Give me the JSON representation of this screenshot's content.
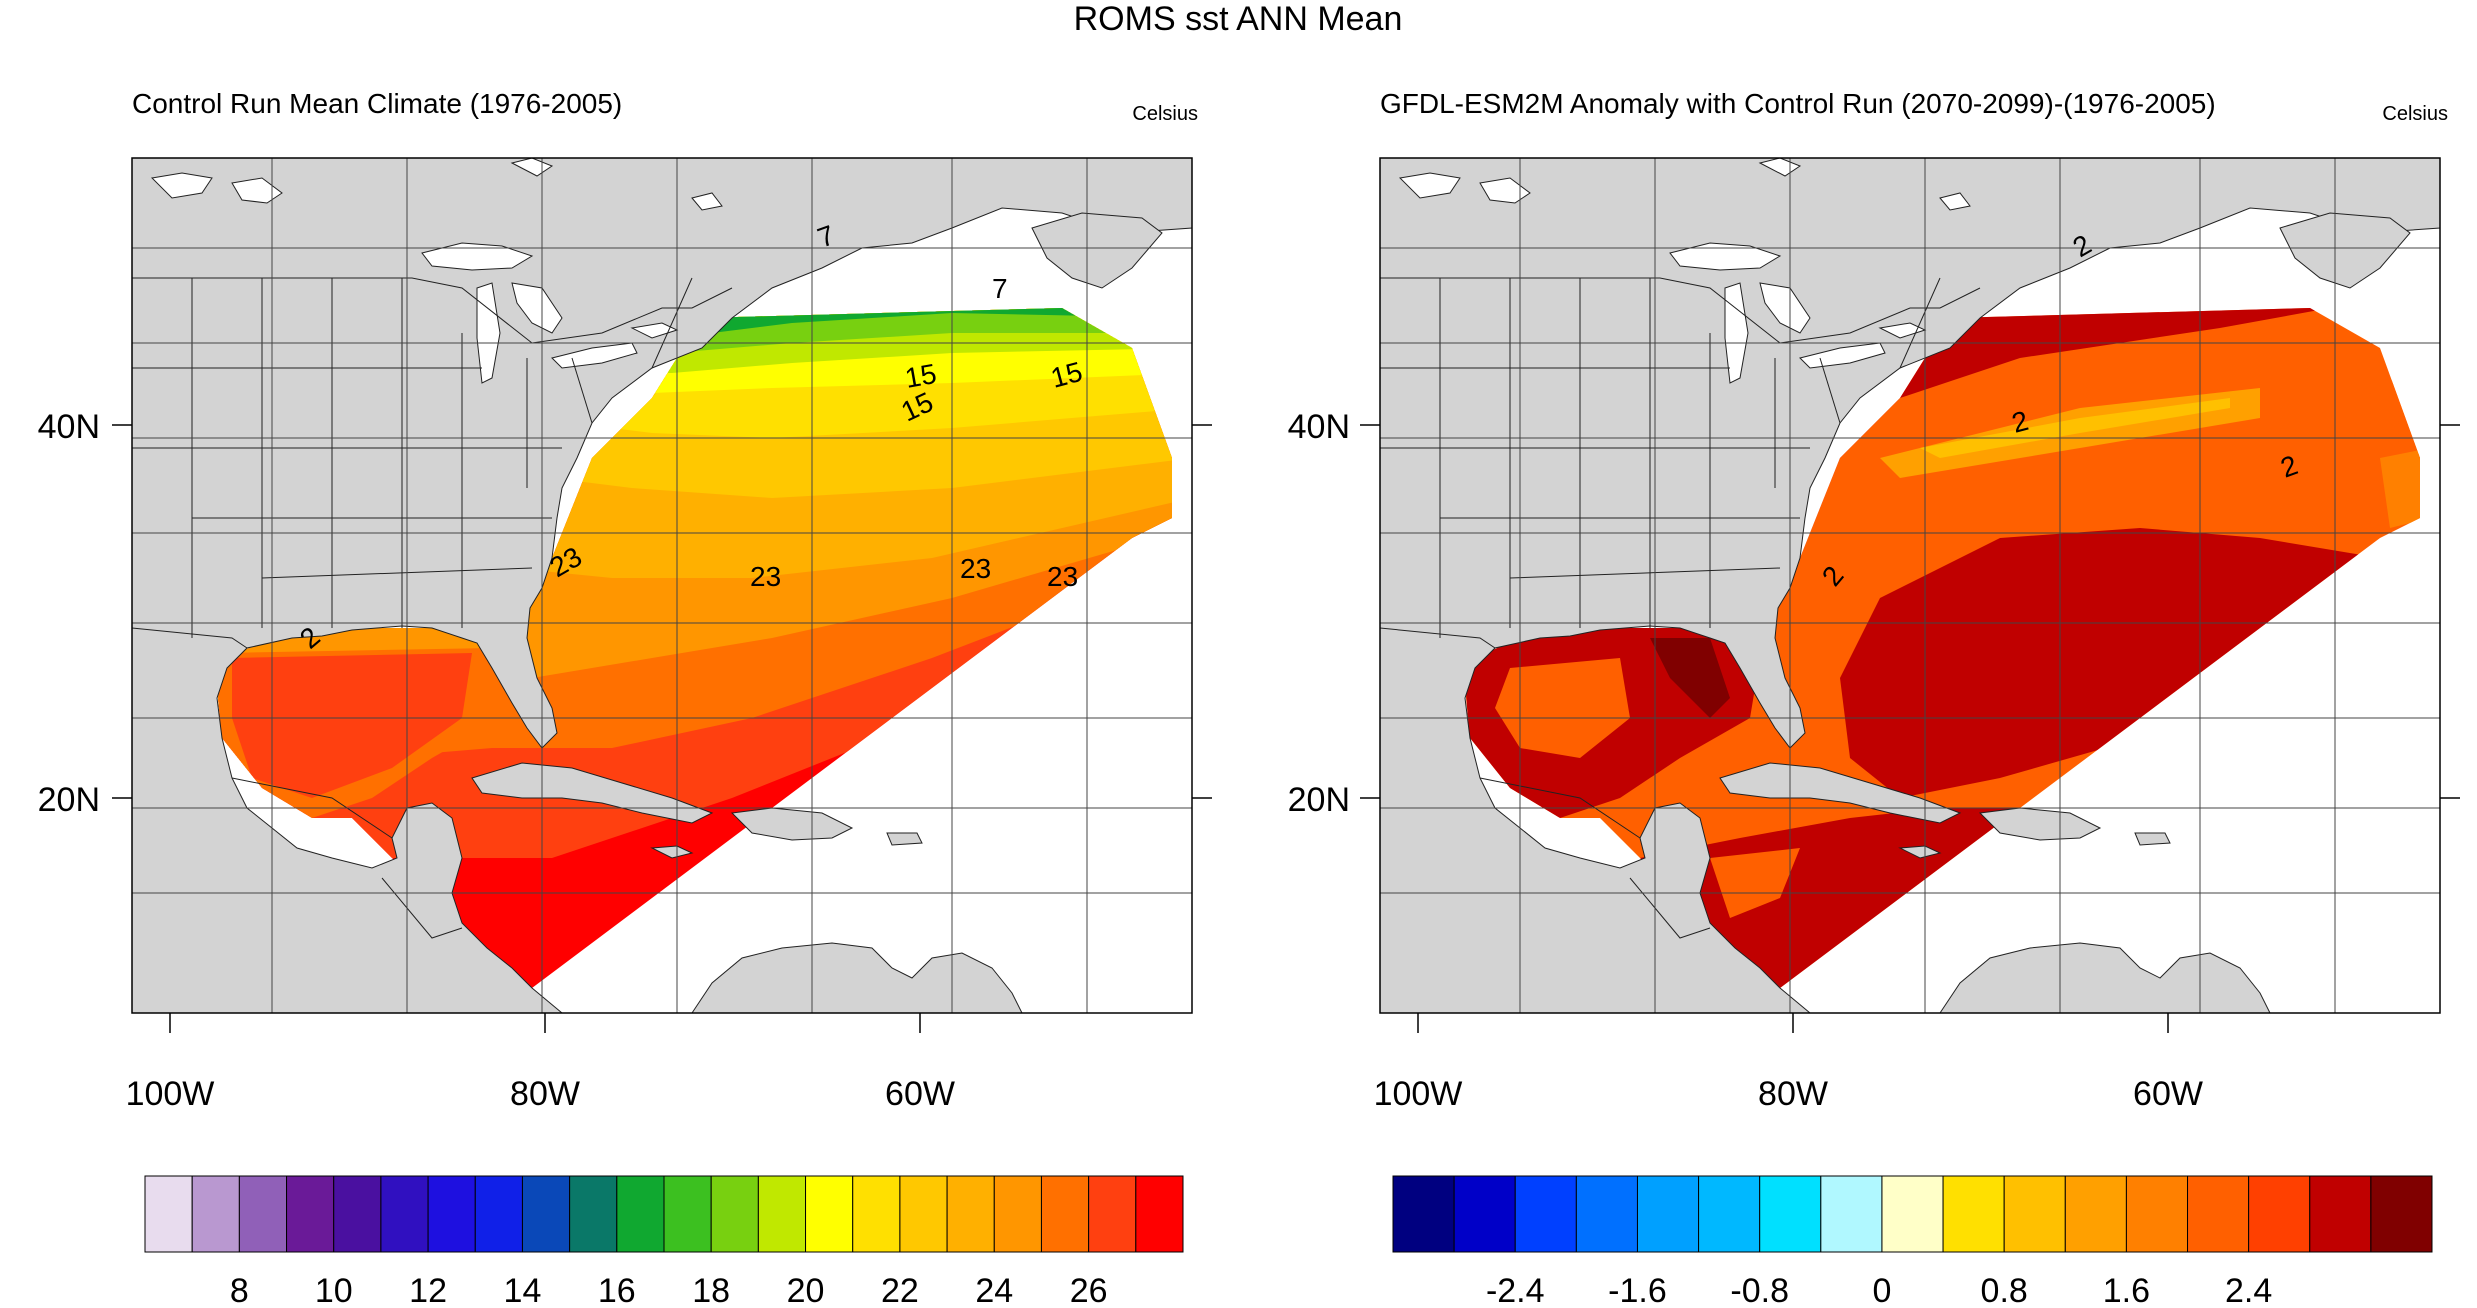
{
  "figure": {
    "title": "ROMS sst ANN Mean"
  },
  "panels": [
    {
      "title": "Control Run Mean Climate (1976-2005)",
      "units": "Celsius",
      "lat_labels": [
        "40N",
        "20N"
      ],
      "lon_labels": [
        "100W",
        "80W",
        "60W"
      ],
      "contour_labels": [
        "7",
        "7",
        "15",
        "15",
        "15",
        "23",
        "23",
        "23",
        "23",
        "2"
      ],
      "colorbar": {
        "colors": [
          "#e8dcee",
          "#b998d0",
          "#9060b8",
          "#6a1a98",
          "#4a10a0",
          "#3010c0",
          "#1e10e0",
          "#1020e8",
          "#0a48b8",
          "#0a7868",
          "#10a830",
          "#3cc020",
          "#78d010",
          "#c0e800",
          "#ffff00",
          "#ffe000",
          "#ffc800",
          "#ffb000",
          "#ff9600",
          "#ff7000",
          "#ff4010",
          "#ff0000"
        ],
        "labels": [
          "8",
          "10",
          "12",
          "14",
          "16",
          "18",
          "20",
          "22",
          "24",
          "26"
        ]
      },
      "palette": {
        "cold": "#e8dcee",
        "c10": "#6a1a98",
        "c12": "#3010c0",
        "c15": "#0a48b8",
        "c16": "#10a830",
        "c18": "#78d010",
        "c20": "#ffff00",
        "c22": "#ffe000",
        "c23": "#ffc800",
        "c24": "#ffb000",
        "c25": "#ff9600",
        "c26": "#ff7000",
        "c27": "#ff4010",
        "c28": "#ff0000"
      }
    },
    {
      "title": "GFDL-ESM2M Anomaly with Control Run (2070-2099)-(1976-2005)",
      "units": "Celsius",
      "lat_labels": [
        "40N",
        "20N"
      ],
      "lon_labels": [
        "100W",
        "80W",
        "60W"
      ],
      "contour_labels": [
        "2",
        "2",
        "2",
        "2"
      ],
      "colorbar": {
        "colors": [
          "#000080",
          "#0000c8",
          "#0040ff",
          "#0070ff",
          "#00a0ff",
          "#00b8ff",
          "#00e0ff",
          "#b0f8ff",
          "#ffffc8",
          "#ffe000",
          "#ffc000",
          "#ffa000",
          "#ff8000",
          "#ff6000",
          "#ff4000",
          "#c00000",
          "#800000"
        ],
        "labels": [
          "-2.4",
          "-1.6",
          "-0.8",
          "0",
          "0.8",
          "1.6",
          "2.4"
        ]
      },
      "palette": {
        "warm1": "#ff8000",
        "warm2": "#ff6000",
        "warm3": "#ff4000",
        "hot": "#c00000",
        "hottest": "#800000",
        "mild": "#ffc000",
        "mild2": "#ffe000"
      }
    }
  ],
  "map_colors": {
    "land": "#d3d3d3",
    "ocean": "#ffffff",
    "lake": "#ffffff",
    "border": "#222222",
    "grid": "#444444"
  }
}
